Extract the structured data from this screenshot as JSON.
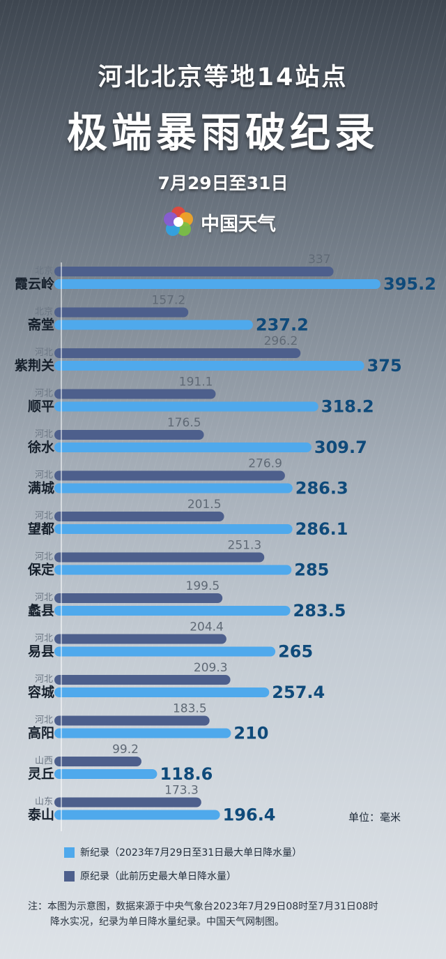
{
  "header": {
    "title_line1": "河北北京等地14站点",
    "title_line2": "极端暴雨破纪录",
    "dates": "7月29日至31日",
    "brand": "中国天气",
    "brand_icon": "china-weather-logo"
  },
  "chart_data": {
    "type": "bar",
    "orientation": "horizontal",
    "categories": [
      "霞云岭",
      "斋堂",
      "紫荆关",
      "顺平",
      "徐水",
      "满城",
      "望都",
      "保定",
      "蠡县",
      "易县",
      "容城",
      "高阳",
      "灵丘",
      "泰山"
    ],
    "provinces": [
      "北京",
      "北京",
      "河北",
      "河北",
      "河北",
      "河北",
      "河北",
      "河北",
      "河北",
      "河北",
      "河北",
      "河北",
      "山西",
      "山东"
    ],
    "series": [
      {
        "name": "原纪录（此前历史最大单日降水量）",
        "values": [
          337,
          157.2,
          296.2,
          191.1,
          176.5,
          276.9,
          201.5,
          251.3,
          199.5,
          204.4,
          209.3,
          183.5,
          99.2,
          173.3
        ],
        "labels": [
          "337",
          "157.2",
          "296.2",
          "191.1",
          "176.5",
          "276.9",
          "201.5",
          "251.3",
          "199.5",
          "204.4",
          "209.3",
          "183.5",
          "99.2",
          "173.3"
        ],
        "color": "#4d5f8c"
      },
      {
        "name": "新纪录（2023年7月29日至31日最大单日降水量）",
        "values": [
          395.2,
          237.2,
          375,
          318.2,
          309.7,
          286.3,
          286.1,
          285,
          283.5,
          265,
          257.4,
          210,
          118.6,
          196.4
        ],
        "labels": [
          "395.2",
          "237.2",
          "375",
          "318.2",
          "309.7",
          "286.3",
          "286.1",
          "285",
          "283.5",
          "265",
          "257.4",
          "210",
          "118.6",
          "196.4"
        ],
        "color": "#4fa9ec"
      }
    ],
    "xlim": [
      0,
      395.2
    ],
    "unit_label": "单位：毫米"
  },
  "legend": {
    "new_label": "新纪录（2023年7月29日至31日最大单日降水量）",
    "old_label": "原纪录（此前历史最大单日降水量）",
    "new_color": "#4fa9ec",
    "old_color": "#4d5f8c"
  },
  "note": {
    "line1": "注：本图为示意图，数据来源于中央气象台2023年7月29日08时至7月31日08时",
    "line2": "降水实况，纪录为单日降水量纪录。中国天气网制图。"
  }
}
